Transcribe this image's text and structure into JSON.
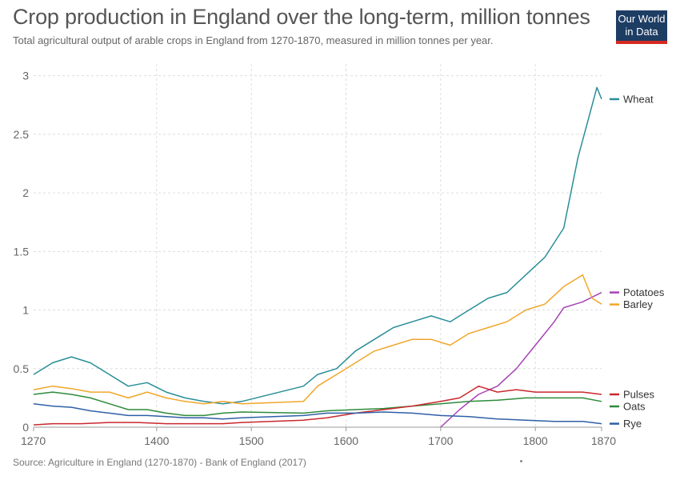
{
  "header": {
    "title": "Crop production in England over the long-term, million tonnes",
    "subtitle": "Total agricultural output of arable crops in England from 1270-1870, measured in million tonnes per year."
  },
  "logo": {
    "line1": "Our World",
    "line2": "in Data",
    "bg": "#1d3d63",
    "accent": "#d42b21"
  },
  "footer": {
    "source": "Source: Agriculture in England (1270-1870) - Bank of England (2017)"
  },
  "chart_data": {
    "type": "line",
    "title": "Crop production in England over the long-term, million tonnes",
    "xlabel": "",
    "ylabel": "",
    "xlim": [
      1270,
      1870
    ],
    "ylim": [
      0,
      3.1
    ],
    "x_ticks": [
      1270,
      1400,
      1500,
      1600,
      1700,
      1800,
      1870
    ],
    "y_ticks": [
      0,
      0.5,
      1,
      1.5,
      2,
      2.5,
      3
    ],
    "grid": true,
    "legend_position": "right",
    "series": [
      {
        "name": "Wheat",
        "color": "#2a8e98",
        "points": [
          [
            1270,
            0.45
          ],
          [
            1290,
            0.55
          ],
          [
            1310,
            0.6
          ],
          [
            1330,
            0.55
          ],
          [
            1350,
            0.45
          ],
          [
            1370,
            0.35
          ],
          [
            1390,
            0.38
          ],
          [
            1410,
            0.3
          ],
          [
            1430,
            0.25
          ],
          [
            1450,
            0.22
          ],
          [
            1470,
            0.2
          ],
          [
            1490,
            0.22
          ],
          [
            1555,
            0.35
          ],
          [
            1570,
            0.45
          ],
          [
            1590,
            0.5
          ],
          [
            1610,
            0.65
          ],
          [
            1630,
            0.75
          ],
          [
            1650,
            0.85
          ],
          [
            1670,
            0.9
          ],
          [
            1690,
            0.95
          ],
          [
            1710,
            0.9
          ],
          [
            1730,
            1.0
          ],
          [
            1750,
            1.1
          ],
          [
            1770,
            1.15
          ],
          [
            1790,
            1.3
          ],
          [
            1810,
            1.45
          ],
          [
            1830,
            1.7
          ],
          [
            1845,
            2.3
          ],
          [
            1855,
            2.6
          ],
          [
            1865,
            2.9
          ],
          [
            1870,
            2.8
          ]
        ]
      },
      {
        "name": "Potatoes",
        "color": "#a742b6",
        "points": [
          [
            1700,
            0.0
          ],
          [
            1720,
            0.15
          ],
          [
            1740,
            0.28
          ],
          [
            1760,
            0.35
          ],
          [
            1780,
            0.5
          ],
          [
            1800,
            0.7
          ],
          [
            1820,
            0.9
          ],
          [
            1830,
            1.02
          ],
          [
            1850,
            1.07
          ],
          [
            1870,
            1.15
          ]
        ]
      },
      {
        "name": "Barley",
        "color": "#f0a62a",
        "points": [
          [
            1270,
            0.32
          ],
          [
            1290,
            0.35
          ],
          [
            1310,
            0.33
          ],
          [
            1330,
            0.3
          ],
          [
            1350,
            0.3
          ],
          [
            1370,
            0.25
          ],
          [
            1390,
            0.3
          ],
          [
            1410,
            0.25
          ],
          [
            1430,
            0.22
          ],
          [
            1450,
            0.2
          ],
          [
            1470,
            0.22
          ],
          [
            1490,
            0.2
          ],
          [
            1555,
            0.22
          ],
          [
            1570,
            0.35
          ],
          [
            1590,
            0.45
          ],
          [
            1610,
            0.55
          ],
          [
            1630,
            0.65
          ],
          [
            1650,
            0.7
          ],
          [
            1670,
            0.75
          ],
          [
            1690,
            0.75
          ],
          [
            1710,
            0.7
          ],
          [
            1730,
            0.8
          ],
          [
            1750,
            0.85
          ],
          [
            1770,
            0.9
          ],
          [
            1790,
            1.0
          ],
          [
            1810,
            1.05
          ],
          [
            1830,
            1.2
          ],
          [
            1850,
            1.3
          ],
          [
            1860,
            1.1
          ],
          [
            1870,
            1.05
          ]
        ]
      },
      {
        "name": "Oats",
        "color": "#2e8b3a",
        "points": [
          [
            1270,
            0.28
          ],
          [
            1290,
            0.3
          ],
          [
            1310,
            0.28
          ],
          [
            1330,
            0.25
          ],
          [
            1350,
            0.2
          ],
          [
            1370,
            0.15
          ],
          [
            1390,
            0.15
          ],
          [
            1410,
            0.12
          ],
          [
            1430,
            0.1
          ],
          [
            1450,
            0.1
          ],
          [
            1470,
            0.12
          ],
          [
            1490,
            0.13
          ],
          [
            1555,
            0.12
          ],
          [
            1580,
            0.14
          ],
          [
            1610,
            0.15
          ],
          [
            1640,
            0.16
          ],
          [
            1670,
            0.18
          ],
          [
            1700,
            0.2
          ],
          [
            1730,
            0.22
          ],
          [
            1760,
            0.23
          ],
          [
            1790,
            0.25
          ],
          [
            1820,
            0.25
          ],
          [
            1850,
            0.25
          ],
          [
            1870,
            0.22
          ]
        ]
      },
      {
        "name": "Pulses",
        "color": "#c9282e",
        "points": [
          [
            1270,
            0.02
          ],
          [
            1290,
            0.03
          ],
          [
            1320,
            0.03
          ],
          [
            1350,
            0.04
          ],
          [
            1380,
            0.04
          ],
          [
            1410,
            0.03
          ],
          [
            1440,
            0.03
          ],
          [
            1470,
            0.03
          ],
          [
            1490,
            0.04
          ],
          [
            1555,
            0.06
          ],
          [
            1580,
            0.08
          ],
          [
            1610,
            0.12
          ],
          [
            1640,
            0.15
          ],
          [
            1670,
            0.18
          ],
          [
            1700,
            0.22
          ],
          [
            1720,
            0.25
          ],
          [
            1740,
            0.35
          ],
          [
            1760,
            0.3
          ],
          [
            1780,
            0.32
          ],
          [
            1800,
            0.3
          ],
          [
            1820,
            0.3
          ],
          [
            1850,
            0.3
          ],
          [
            1870,
            0.28
          ]
        ]
      },
      {
        "name": "Rye",
        "color": "#2f5fa6",
        "points": [
          [
            1270,
            0.2
          ],
          [
            1290,
            0.18
          ],
          [
            1310,
            0.17
          ],
          [
            1330,
            0.14
          ],
          [
            1350,
            0.12
          ],
          [
            1370,
            0.1
          ],
          [
            1390,
            0.1
          ],
          [
            1410,
            0.09
          ],
          [
            1430,
            0.08
          ],
          [
            1450,
            0.08
          ],
          [
            1470,
            0.07
          ],
          [
            1490,
            0.08
          ],
          [
            1555,
            0.1
          ],
          [
            1580,
            0.12
          ],
          [
            1610,
            0.12
          ],
          [
            1640,
            0.13
          ],
          [
            1670,
            0.12
          ],
          [
            1700,
            0.1
          ],
          [
            1730,
            0.09
          ],
          [
            1760,
            0.07
          ],
          [
            1790,
            0.06
          ],
          [
            1820,
            0.05
          ],
          [
            1850,
            0.05
          ],
          [
            1870,
            0.03
          ]
        ]
      }
    ]
  }
}
